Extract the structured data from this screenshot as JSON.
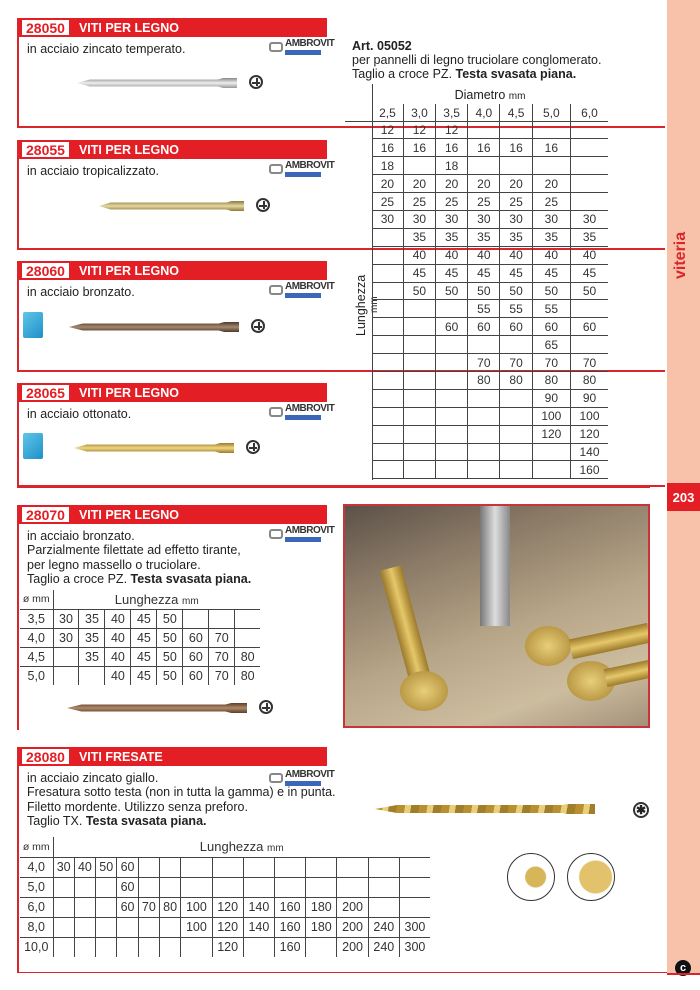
{
  "side_tab": {
    "label": "viteria",
    "page_number": "203"
  },
  "products": [
    {
      "code": "28050",
      "title": "VITI PER LEGNO",
      "lines": [
        "in acciaio zincato temperato."
      ],
      "brand": "AMBROVIT"
    },
    {
      "code": "28055",
      "title": "VITI PER LEGNO",
      "lines": [
        "in acciaio tropicalizzato."
      ],
      "brand": "AMBROVIT"
    },
    {
      "code": "28060",
      "title": "VITI PER LEGNO",
      "lines": [
        "in acciaio bronzato."
      ],
      "brand": "AMBROVIT"
    },
    {
      "code": "28065",
      "title": "VITI PER LEGNO",
      "lines": [
        "in acciaio ottonato."
      ],
      "brand": "AMBROVIT"
    },
    {
      "code": "28070",
      "title": "VITI PER LEGNO",
      "lines": [
        "in acciaio bronzato.",
        "Parzialmente filettate ad effetto tirante,",
        "per legno massello o truciolare."
      ],
      "last_line": "Taglio a croce PZ. ",
      "last_bold": "Testa svasata piana.",
      "brand": "AMBROVIT"
    },
    {
      "code": "28080",
      "title": "VITI FRESATE",
      "lines": [
        "in acciaio zincato giallo.",
        "Fresatura sotto testa (non in tutta la gamma) e in punta.",
        "Filetto mordente. Utilizzo senza preforo."
      ],
      "last_line": "Taglio TX. ",
      "last_bold": "Testa svasata piana.",
      "brand": "AMBROVIT"
    }
  ],
  "art": {
    "title": "Art. 05052",
    "line1": "per pannelli di legno truciolare conglomerato.",
    "line2": "Taglio a croce PZ. ",
    "line2_bold": "Testa svasata piana."
  },
  "table_05052": {
    "col_title": "Diametro",
    "col_unit": "mm",
    "row_title": "Lunghezza",
    "row_unit": "mm",
    "diameters": [
      "2,5",
      "3,0",
      "3,5",
      "4,0",
      "4,5",
      "5,0",
      "6,0"
    ],
    "rows": [
      [
        "12",
        "12",
        "12",
        "",
        "",
        "",
        ""
      ],
      [
        "16",
        "16",
        "16",
        "16",
        "16",
        "16",
        ""
      ],
      [
        "18",
        "",
        "18",
        "",
        "",
        "",
        ""
      ],
      [
        "20",
        "20",
        "20",
        "20",
        "20",
        "20",
        ""
      ],
      [
        "25",
        "25",
        "25",
        "25",
        "25",
        "25",
        ""
      ],
      [
        "30",
        "30",
        "30",
        "30",
        "30",
        "30",
        "30"
      ],
      [
        "",
        "35",
        "35",
        "35",
        "35",
        "35",
        "35"
      ],
      [
        "",
        "40",
        "40",
        "40",
        "40",
        "40",
        "40"
      ],
      [
        "",
        "45",
        "45",
        "45",
        "45",
        "45",
        "45"
      ],
      [
        "",
        "50",
        "50",
        "50",
        "50",
        "50",
        "50"
      ],
      [
        "",
        "",
        "",
        "55",
        "55",
        "55",
        ""
      ],
      [
        "",
        "",
        "60",
        "60",
        "60",
        "60",
        "60"
      ],
      [
        "",
        "",
        "",
        "",
        "",
        "65",
        ""
      ],
      [
        "",
        "",
        "",
        "70",
        "70",
        "70",
        "70"
      ],
      [
        "",
        "",
        "",
        "80",
        "80",
        "80",
        "80"
      ],
      [
        "",
        "",
        "",
        "",
        "",
        "90",
        "90"
      ],
      [
        "",
        "",
        "",
        "",
        "",
        "100",
        "100"
      ],
      [
        "",
        "",
        "",
        "",
        "",
        "120",
        "120"
      ],
      [
        "",
        "",
        "",
        "",
        "",
        "",
        "140"
      ],
      [
        "",
        "",
        "",
        "",
        "",
        "",
        "160"
      ]
    ]
  },
  "table_28070": {
    "diam_header": "ø mm",
    "len_title": "Lunghezza",
    "len_unit": "mm",
    "rows": [
      {
        "d": "3,5",
        "v": [
          "30",
          "35",
          "40",
          "45",
          "50",
          "",
          "",
          ""
        ]
      },
      {
        "d": "4,0",
        "v": [
          "30",
          "35",
          "40",
          "45",
          "50",
          "60",
          "70",
          ""
        ]
      },
      {
        "d": "4,5",
        "v": [
          "",
          "35",
          "40",
          "45",
          "50",
          "60",
          "70",
          "80"
        ]
      },
      {
        "d": "5,0",
        "v": [
          "",
          "",
          "40",
          "45",
          "50",
          "60",
          "70",
          "80"
        ]
      }
    ]
  },
  "table_28080": {
    "diam_header": "ø mm",
    "len_title": "Lunghezza",
    "len_unit": "mm",
    "rows": [
      {
        "d": "4,0",
        "v": [
          "30",
          "40",
          "50",
          "60",
          "",
          "",
          "",
          "",
          "",
          "",
          "",
          "",
          "",
          ""
        ]
      },
      {
        "d": "5,0",
        "v": [
          "",
          "",
          "",
          "60",
          "",
          "",
          "",
          "",
          "",
          "",
          "",
          "",
          "",
          ""
        ]
      },
      {
        "d": "6,0",
        "v": [
          "",
          "",
          "",
          "60",
          "70",
          "80",
          "100",
          "120",
          "140",
          "160",
          "180",
          "200",
          "",
          ""
        ]
      },
      {
        "d": "8,0",
        "v": [
          "",
          "",
          "",
          "",
          "",
          "",
          "100",
          "120",
          "140",
          "160",
          "180",
          "200",
          "240",
          "300"
        ]
      },
      {
        "d": "10,0",
        "v": [
          "",
          "",
          "",
          "",
          "",
          "",
          "",
          "120",
          "",
          "160",
          "",
          "200",
          "240",
          "300"
        ]
      }
    ]
  },
  "colors": {
    "brand_red": "#e31e24",
    "side_tab": "#f8c1a9"
  }
}
